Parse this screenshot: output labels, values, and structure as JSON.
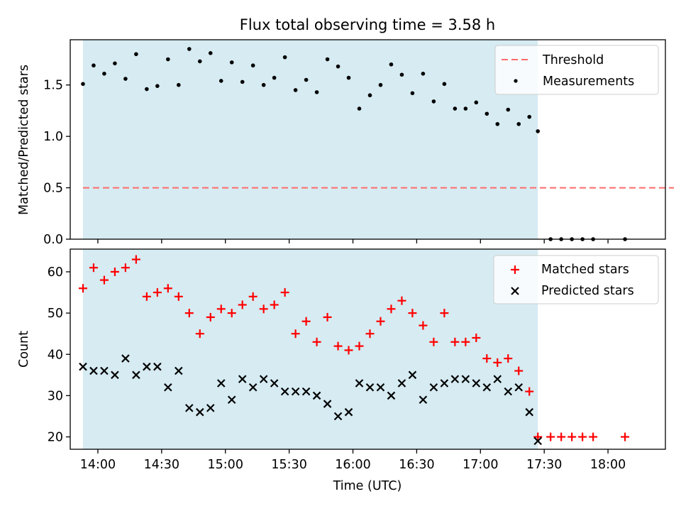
{
  "chart_data": [
    {
      "type": "scatter",
      "title": "Flux total observing time = 3.58 h",
      "xlabel": "",
      "ylabel": "Matched/Predicted stars",
      "xlim": [
        "13:47",
        "18:27"
      ],
      "ylim": [
        0,
        1.94
      ],
      "yticks": [
        0.0,
        0.5,
        1.0,
        1.5
      ],
      "ytick_labels": [
        "0.0",
        "0.5",
        "1.0",
        "1.5"
      ],
      "shaded_region": {
        "start": "13:53",
        "end": "17:27",
        "color": "#add8e6"
      },
      "legend": {
        "position": "top-right"
      },
      "threshold": {
        "name": "Threshold",
        "value": 0.5,
        "x": [
          "13:53",
          "18:31"
        ],
        "color": "#ff6b6b",
        "style": "dashed"
      },
      "series": [
        {
          "name": "Measurements",
          "marker": "dot",
          "color": "#000000",
          "x": [
            "13:53",
            "13:58",
            "14:03",
            "14:08",
            "14:13",
            "14:18",
            "14:23",
            "14:28",
            "14:33",
            "14:38",
            "14:43",
            "14:48",
            "14:53",
            "14:58",
            "15:03",
            "15:08",
            "15:13",
            "15:18",
            "15:23",
            "15:28",
            "15:33",
            "15:38",
            "15:43",
            "15:48",
            "15:53",
            "15:58",
            "16:03",
            "16:08",
            "16:13",
            "16:18",
            "16:23",
            "16:28",
            "16:33",
            "16:38",
            "16:43",
            "16:48",
            "16:53",
            "16:58",
            "17:03",
            "17:08",
            "17:13",
            "17:18",
            "17:23",
            "17:27",
            "17:33",
            "17:38",
            "17:43",
            "17:48",
            "17:53",
            "18:08"
          ],
          "y": [
            1.51,
            1.69,
            1.61,
            1.71,
            1.56,
            1.8,
            1.46,
            1.49,
            1.75,
            1.5,
            1.85,
            1.73,
            1.81,
            1.54,
            1.72,
            1.53,
            1.69,
            1.5,
            1.57,
            1.77,
            1.45,
            1.55,
            1.43,
            1.75,
            1.68,
            1.57,
            1.27,
            1.4,
            1.5,
            1.7,
            1.6,
            1.42,
            1.61,
            1.34,
            1.51,
            1.27,
            1.27,
            1.33,
            1.22,
            1.12,
            1.26,
            1.12,
            1.19,
            1.05,
            0,
            0,
            0,
            0,
            0,
            0
          ]
        }
      ]
    },
    {
      "type": "scatter",
      "title": "",
      "xlabel": "Time (UTC)",
      "ylabel": "Count",
      "xlim": [
        "13:47",
        "18:27"
      ],
      "ylim": [
        17,
        65.5
      ],
      "yticks": [
        20,
        30,
        40,
        50,
        60
      ],
      "ytick_labels": [
        "20",
        "30",
        "40",
        "50",
        "60"
      ],
      "xticks": [
        "14:00",
        "14:30",
        "15:00",
        "15:30",
        "16:00",
        "16:30",
        "17:00",
        "17:30",
        "18:00"
      ],
      "xtick_labels": [
        "14:00",
        "14:30",
        "15:00",
        "15:30",
        "16:00",
        "16:30",
        "17:00",
        "17:30",
        "18:00"
      ],
      "shaded_region": {
        "start": "13:53",
        "end": "17:27",
        "color": "#add8e6"
      },
      "legend": {
        "position": "top-right"
      },
      "series": [
        {
          "name": "Matched stars",
          "marker": "plus",
          "color": "#ff0000",
          "x": [
            "13:53",
            "13:58",
            "14:03",
            "14:08",
            "14:13",
            "14:18",
            "14:23",
            "14:28",
            "14:33",
            "14:38",
            "14:43",
            "14:48",
            "14:53",
            "14:58",
            "15:03",
            "15:08",
            "15:13",
            "15:18",
            "15:23",
            "15:28",
            "15:33",
            "15:38",
            "15:43",
            "15:48",
            "15:53",
            "15:58",
            "16:03",
            "16:08",
            "16:13",
            "16:18",
            "16:23",
            "16:28",
            "16:33",
            "16:38",
            "16:43",
            "16:48",
            "16:53",
            "16:58",
            "17:03",
            "17:08",
            "17:13",
            "17:18",
            "17:23",
            "17:27",
            "17:33",
            "17:38",
            "17:43",
            "17:48",
            "17:53",
            "18:08"
          ],
          "y": [
            56,
            61,
            58,
            60,
            61,
            63,
            54,
            55,
            56,
            54,
            50,
            45,
            49,
            51,
            50,
            52,
            54,
            51,
            52,
            55,
            45,
            48,
            43,
            49,
            42,
            41,
            42,
            45,
            48,
            51,
            53,
            50,
            47,
            43,
            50,
            43,
            43,
            44,
            39,
            38,
            39,
            36,
            31,
            20,
            20,
            20,
            20,
            20,
            20,
            20
          ]
        },
        {
          "name": "Predicted stars",
          "marker": "x",
          "color": "#000000",
          "x": [
            "13:53",
            "13:58",
            "14:03",
            "14:08",
            "14:13",
            "14:18",
            "14:23",
            "14:28",
            "14:33",
            "14:38",
            "14:43",
            "14:48",
            "14:53",
            "14:58",
            "15:03",
            "15:08",
            "15:13",
            "15:18",
            "15:23",
            "15:28",
            "15:33",
            "15:38",
            "15:43",
            "15:48",
            "15:53",
            "15:58",
            "16:03",
            "16:08",
            "16:13",
            "16:18",
            "16:23",
            "16:28",
            "16:33",
            "16:38",
            "16:43",
            "16:48",
            "16:53",
            "16:58",
            "17:03",
            "17:08",
            "17:13",
            "17:18",
            "17:23",
            "17:27"
          ],
          "y": [
            37,
            36,
            36,
            35,
            39,
            35,
            37,
            37,
            32,
            36,
            27,
            26,
            27,
            33,
            29,
            34,
            32,
            34,
            33,
            31,
            31,
            31,
            30,
            28,
            25,
            26,
            33,
            32,
            32,
            30,
            33,
            35,
            29,
            32,
            33,
            34,
            34,
            33,
            32,
            34,
            31,
            32,
            26,
            19
          ]
        }
      ]
    }
  ]
}
